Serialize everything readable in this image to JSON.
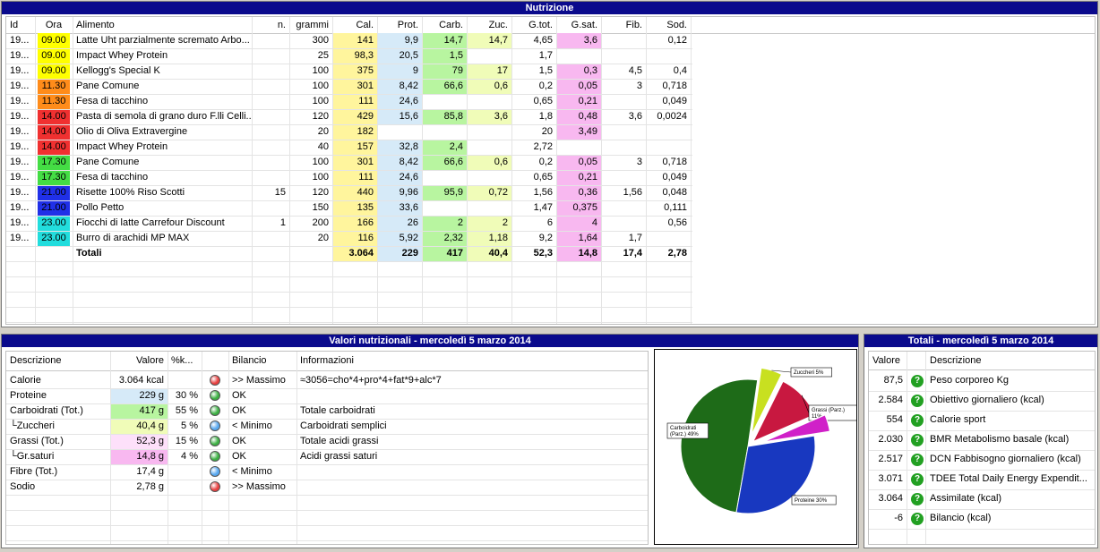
{
  "colors": {
    "title_bar": "#0a0a8c",
    "cal": "#fff59d",
    "prot": "#d6eaf8",
    "carb": "#b8f5a0",
    "zuc": "#f0fcb8",
    "gtot": "#ffffff",
    "gsat": "#f8b8f0",
    "hour_yellow": "#ffff00",
    "hour_orange": "#ff8c1a",
    "hour_red": "#f03030",
    "hour_green": "#44dd44",
    "hour_blue": "#2030e8",
    "hour_cyan": "#22dddd"
  },
  "nutrition": {
    "title": "Nutrizione",
    "headers": {
      "id": "Id",
      "ora": "Ora",
      "alimento": "Alimento",
      "n": "n.",
      "grammi": "grammi",
      "cal": "Cal.",
      "prot": "Prot.",
      "carb": "Carb.",
      "zuc": "Zuc.",
      "gtot": "G.tot.",
      "gsat": "G.sat.",
      "fib": "Fib.",
      "sod": "Sod."
    },
    "rows": [
      {
        "id": "19...",
        "ora": "09.00",
        "oc": "hour_yellow",
        "alimento": "Latte Uht parzialmente scremato Arbo...",
        "n": "",
        "grammi": "300",
        "cal": "141",
        "prot": "9,9",
        "carb": "14,7",
        "zuc": "14,7",
        "gtot": "4,65",
        "gsat": "3,6",
        "fib": "",
        "sod": "0,12"
      },
      {
        "id": "19...",
        "ora": "09.00",
        "oc": "hour_yellow",
        "alimento": "Impact Whey Protein",
        "n": "",
        "grammi": "25",
        "cal": "98,3",
        "prot": "20,5",
        "carb": "1,5",
        "zuc": "",
        "gtot": "1,7",
        "gsat": "",
        "fib": "",
        "sod": ""
      },
      {
        "id": "19...",
        "ora": "09.00",
        "oc": "hour_yellow",
        "alimento": "Kellogg's Special K",
        "n": "",
        "grammi": "100",
        "cal": "375",
        "prot": "9",
        "carb": "79",
        "zuc": "17",
        "gtot": "1,5",
        "gsat": "0,3",
        "fib": "4,5",
        "sod": "0,4"
      },
      {
        "id": "19...",
        "ora": "11.30",
        "oc": "hour_orange",
        "alimento": "Pane Comune",
        "n": "",
        "grammi": "100",
        "cal": "301",
        "prot": "8,42",
        "carb": "66,6",
        "zuc": "0,6",
        "gtot": "0,2",
        "gsat": "0,05",
        "fib": "3",
        "sod": "0,718"
      },
      {
        "id": "19...",
        "ora": "11.30",
        "oc": "hour_orange",
        "alimento": "Fesa di tacchino",
        "n": "",
        "grammi": "100",
        "cal": "111",
        "prot": "24,6",
        "carb": "",
        "zuc": "",
        "gtot": "0,65",
        "gsat": "0,21",
        "fib": "",
        "sod": "0,049"
      },
      {
        "id": "19...",
        "ora": "14.00",
        "oc": "hour_red",
        "alimento": "Pasta di semola di grano duro F.lli Celli...",
        "n": "",
        "grammi": "120",
        "cal": "429",
        "prot": "15,6",
        "carb": "85,8",
        "zuc": "3,6",
        "gtot": "1,8",
        "gsat": "0,48",
        "fib": "3,6",
        "sod": "0,0024"
      },
      {
        "id": "19...",
        "ora": "14.00",
        "oc": "hour_red",
        "alimento": "Olio di Oliva Extravergine",
        "n": "",
        "grammi": "20",
        "cal": "182",
        "prot": "",
        "carb": "",
        "zuc": "",
        "gtot": "20",
        "gsat": "3,49",
        "fib": "",
        "sod": ""
      },
      {
        "id": "19...",
        "ora": "14.00",
        "oc": "hour_red",
        "alimento": "Impact Whey Protein",
        "n": "",
        "grammi": "40",
        "cal": "157",
        "prot": "32,8",
        "carb": "2,4",
        "zuc": "",
        "gtot": "2,72",
        "gsat": "",
        "fib": "",
        "sod": ""
      },
      {
        "id": "19...",
        "ora": "17.30",
        "oc": "hour_green",
        "alimento": "Pane Comune",
        "n": "",
        "grammi": "100",
        "cal": "301",
        "prot": "8,42",
        "carb": "66,6",
        "zuc": "0,6",
        "gtot": "0,2",
        "gsat": "0,05",
        "fib": "3",
        "sod": "0,718"
      },
      {
        "id": "19...",
        "ora": "17.30",
        "oc": "hour_green",
        "alimento": "Fesa di tacchino",
        "n": "",
        "grammi": "100",
        "cal": "111",
        "prot": "24,6",
        "carb": "",
        "zuc": "",
        "gtot": "0,65",
        "gsat": "0,21",
        "fib": "",
        "sod": "0,049"
      },
      {
        "id": "19...",
        "ora": "21.00",
        "oc": "hour_blue",
        "alimento": "Risette 100% Riso Scotti",
        "n": "15",
        "grammi": "120",
        "cal": "440",
        "prot": "9,96",
        "carb": "95,9",
        "zuc": "0,72",
        "gtot": "1,56",
        "gsat": "0,36",
        "fib": "1,56",
        "sod": "0,048"
      },
      {
        "id": "19...",
        "ora": "21.00",
        "oc": "hour_blue",
        "alimento": "Pollo Petto",
        "n": "",
        "grammi": "150",
        "cal": "135",
        "prot": "33,6",
        "carb": "",
        "zuc": "",
        "gtot": "1,47",
        "gsat": "0,375",
        "fib": "",
        "sod": "0,111"
      },
      {
        "id": "19...",
        "ora": "23.00",
        "oc": "hour_cyan",
        "alimento": "Fiocchi di latte Carrefour Discount",
        "n": "1",
        "grammi": "200",
        "cal": "166",
        "prot": "26",
        "carb": "2",
        "zuc": "2",
        "gtot": "6",
        "gsat": "4",
        "fib": "",
        "sod": "0,56"
      },
      {
        "id": "19...",
        "ora": "23.00",
        "oc": "hour_cyan",
        "alimento": "Burro di arachidi MP MAX",
        "n": "",
        "grammi": "20",
        "cal": "116",
        "prot": "5,92",
        "carb": "2,32",
        "zuc": "1,18",
        "gtot": "9,2",
        "gsat": "1,64",
        "fib": "1,7",
        "sod": ""
      }
    ],
    "totals": {
      "label": "Totali",
      "cal": "3.064",
      "prot": "229",
      "carb": "417",
      "zuc": "40,4",
      "gtot": "52,3",
      "gsat": "14,8",
      "fib": "17,4",
      "sod": "2,78"
    }
  },
  "valori": {
    "title": "Valori nutrizionali - mercoledì 5 marzo 2014",
    "headers": {
      "descr": "Descrizione",
      "valore": "Valore",
      "pk": "%k...",
      "bilancio": "Bilancio",
      "info": "Informazioni"
    },
    "rows": [
      {
        "descr": "Calorie",
        "valore": "3.064 kcal",
        "vc": "",
        "pk": "",
        "dot": "#e84040",
        "bil": ">> Massimo",
        "info": "≈3056=cho*4+pro*4+fat*9+alc*7"
      },
      {
        "descr": "Proteine",
        "valore": "229 g",
        "vc": "#d6eaf8",
        "pk": "30 %",
        "dot": "#3cb043",
        "bil": "OK",
        "info": ""
      },
      {
        "descr": "Carboidrati (Tot.)",
        "valore": "417 g",
        "vc": "#b8f5a0",
        "pk": "55 %",
        "dot": "#3cb043",
        "bil": "OK",
        "info": "Totale carboidrati"
      },
      {
        "descr": "└Zuccheri",
        "valore": "40,4 g",
        "vc": "#f0fcb8",
        "pk": "5 %",
        "dot": "#58a8f0",
        "bil": "< Minimo",
        "info": "Carboidrati semplici"
      },
      {
        "descr": "Grassi (Tot.)",
        "valore": "52,3 g",
        "vc": "#fde0fa",
        "pk": "15 %",
        "dot": "#3cb043",
        "bil": "OK",
        "info": "Totale acidi grassi"
      },
      {
        "descr": "└Gr.saturi",
        "valore": "14,8 g",
        "vc": "#f8b8f0",
        "pk": "4 %",
        "dot": "#3cb043",
        "bil": "OK",
        "info": "Acidi grassi saturi"
      },
      {
        "descr": "Fibre (Tot.)",
        "valore": "17,4 g",
        "vc": "",
        "pk": "",
        "dot": "#58a8f0",
        "bil": "< Minimo",
        "info": ""
      },
      {
        "descr": "Sodio",
        "valore": "2,78 g",
        "vc": "",
        "pk": "",
        "dot": "#e84040",
        "bil": ">> Massimo",
        "info": ""
      }
    ]
  },
  "chart_data": {
    "type": "pie",
    "labels": [
      "Carboidrati (Parz.) 49%",
      "Zuccheri 5%",
      "Grassi (Parz.) 11%",
      "",
      "Proteine 30%"
    ],
    "values": [
      49,
      5,
      11,
      4,
      30
    ],
    "colors": [
      "#1e6b18",
      "#c8e020",
      "#c81840",
      "#d020c8",
      "#1838c0"
    ]
  },
  "totali": {
    "title": "Totali - mercoledì 5 marzo 2014",
    "headers": {
      "valore": "Valore",
      "descr": "Descrizione"
    },
    "rows": [
      {
        "valore": "87,5",
        "descr": "Peso corporeo Kg"
      },
      {
        "valore": "2.584",
        "descr": "Obiettivo giornaliero (kcal)"
      },
      {
        "valore": "554",
        "descr": "Calorie sport"
      },
      {
        "valore": "2.030",
        "descr": "BMR Metabolismo basale (kcal)"
      },
      {
        "valore": "2.517",
        "descr": "DCN Fabbisogno giornaliero (kcal)"
      },
      {
        "valore": "3.071",
        "descr": "TDEE Total Daily Energy Expendit..."
      },
      {
        "valore": "3.064",
        "descr": "Assimilate (kcal)"
      },
      {
        "valore": "-6",
        "descr": "Bilancio (kcal)"
      }
    ],
    "icon": "help-icon"
  }
}
